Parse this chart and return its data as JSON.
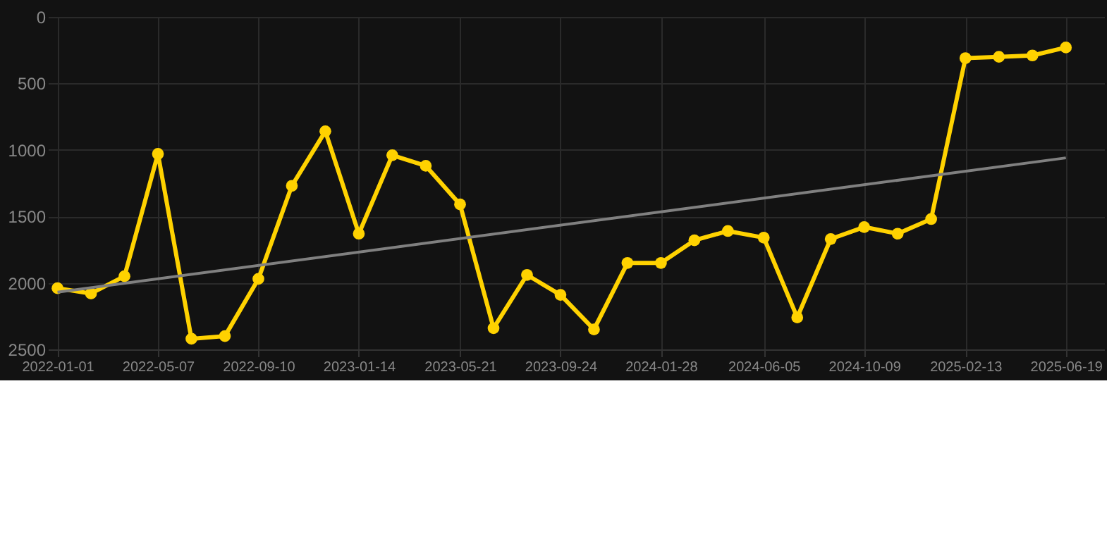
{
  "chart_data": {
    "type": "line",
    "x": [
      "2022-01-01",
      "2022-02-12",
      "2022-03-26",
      "2022-05-07",
      "2022-06-18",
      "2022-07-30",
      "2022-09-10",
      "2022-10-22",
      "2022-12-03",
      "2023-01-14",
      "2023-02-25",
      "2023-04-08",
      "2023-05-21",
      "2023-07-02",
      "2023-08-13",
      "2023-09-24",
      "2023-11-05",
      "2023-12-17",
      "2024-01-28",
      "2024-03-10",
      "2024-04-21",
      "2024-06-05",
      "2024-07-17",
      "2024-08-28",
      "2024-10-09",
      "2024-11-20",
      "2025-01-01",
      "2025-02-13",
      "2025-03-27",
      "2025-05-08",
      "2025-06-19"
    ],
    "series": [
      {
        "color": "#ffd200",
        "marker": "circle",
        "values": [
          2040,
          2080,
          1950,
          1030,
          2420,
          2400,
          1970,
          1270,
          860,
          1630,
          1040,
          1120,
          1410,
          2340,
          1940,
          2090,
          2350,
          1850,
          1850,
          1680,
          1610,
          1660,
          2260,
          1670,
          1580,
          1630,
          1520,
          310,
          300,
          290,
          230
        ]
      },
      {
        "color": "#808080",
        "marker": "none",
        "x": [
          "2022-01-01",
          "2025-06-19"
        ],
        "values": [
          2070,
          1060
        ]
      }
    ],
    "ylim": [
      2500,
      0
    ],
    "yticks": [
      0,
      500,
      1000,
      1500,
      2000,
      2500
    ],
    "xlim": [
      "2021-12-20",
      "2025-08-06"
    ],
    "xticks": [
      "2022-01-01",
      "2022-05-07",
      "2022-09-10",
      "2023-01-14",
      "2023-05-21",
      "2023-09-24",
      "2024-01-28",
      "2024-06-05",
      "2024-10-09",
      "2025-02-13",
      "2025-06-19"
    ],
    "grid": true,
    "line_style": "solid"
  }
}
